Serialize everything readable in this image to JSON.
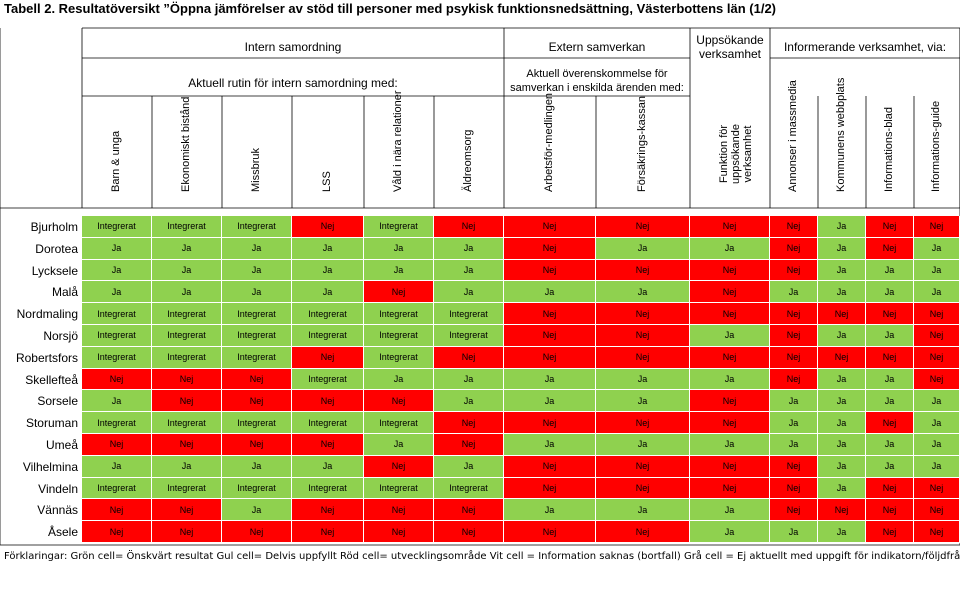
{
  "title": "Tabell 2. Resultatöversikt ”Öppna jämförelser av stöd till personer med psykisk funktionsnedsättning, Västerbottens län (1/2)",
  "groups": {
    "intern": "Intern samordning",
    "intern_sub": "Aktuell rutin för intern samordning med:",
    "extern": "Extern samverkan",
    "extern_sub": "Aktuell överenskommelse för samverkan i enskilda ärenden med:",
    "uppsok": "Uppsökande verksamhet",
    "inform": "Informerande verksamhet, via:"
  },
  "columns": [
    "Barn & unga",
    "Ekonomiskt bistånd",
    "Missbruk",
    "LSS",
    "Våld i nära relationer",
    "Äldreomsorg",
    "Arbetsför-medlingen",
    "Försäkrings-kassan",
    "Funktion för uppsökande verksamhet",
    "Annonser i massmedia",
    "Kommunens webbplats",
    "Informations-blad",
    "Informations-guide"
  ],
  "rows": [
    {
      "name": "Bjurholm",
      "cells": [
        "Integrerat",
        "Integrerat",
        "Integrerat",
        "Nej",
        "Integrerat",
        "Nej",
        "Nej",
        "Nej",
        "Nej",
        "Nej",
        "Ja",
        "Nej",
        "Nej"
      ]
    },
    {
      "name": "Dorotea",
      "cells": [
        "Ja",
        "Ja",
        "Ja",
        "Ja",
        "Ja",
        "Ja",
        "Nej",
        "Ja",
        "Ja",
        "Nej",
        "Ja",
        "Nej",
        "Ja"
      ]
    },
    {
      "name": "Lycksele",
      "cells": [
        "Ja",
        "Ja",
        "Ja",
        "Ja",
        "Ja",
        "Ja",
        "Nej",
        "Nej",
        "Nej",
        "Nej",
        "Ja",
        "Ja",
        "Ja"
      ]
    },
    {
      "name": "Malå",
      "cells": [
        "Ja",
        "Ja",
        "Ja",
        "Ja",
        "Nej",
        "Ja",
        "Ja",
        "Ja",
        "Nej",
        "Ja",
        "Ja",
        "Ja",
        "Ja"
      ]
    },
    {
      "name": "Nordmaling",
      "cells": [
        "Integrerat",
        "Integrerat",
        "Integrerat",
        "Integrerat",
        "Integrerat",
        "Integrerat",
        "Nej",
        "Nej",
        "Nej",
        "Nej",
        "Nej",
        "Nej",
        "Nej"
      ]
    },
    {
      "name": "Norsjö",
      "cells": [
        "Integrerat",
        "Integrerat",
        "Integrerat",
        "Integrerat",
        "Integrerat",
        "Integrerat",
        "Nej",
        "Nej",
        "Ja",
        "Nej",
        "Ja",
        "Ja",
        "Nej"
      ]
    },
    {
      "name": "Robertsfors",
      "cells": [
        "Integrerat",
        "Integrerat",
        "Integrerat",
        "Nej",
        "Integrerat",
        "Nej",
        "Nej",
        "Nej",
        "Nej",
        "Nej",
        "Nej",
        "Nej",
        "Nej"
      ]
    },
    {
      "name": "Skellefteå",
      "cells": [
        "Nej",
        "Nej",
        "Nej",
        "Integrerat",
        "Ja",
        "Ja",
        "Ja",
        "Ja",
        "Ja",
        "Nej",
        "Ja",
        "Ja",
        "Nej"
      ]
    },
    {
      "name": "Sorsele",
      "cells": [
        "Ja",
        "Nej",
        "Nej",
        "Nej",
        "Nej",
        "Ja",
        "Ja",
        "Ja",
        "Nej",
        "Ja",
        "Ja",
        "Ja",
        "Ja"
      ]
    },
    {
      "name": "Storuman",
      "cells": [
        "Integrerat",
        "Integrerat",
        "Integrerat",
        "Integrerat",
        "Integrerat",
        "Nej",
        "Nej",
        "Nej",
        "Nej",
        "Ja",
        "Ja",
        "Nej",
        "Ja"
      ]
    },
    {
      "name": "Umeå",
      "cells": [
        "Nej",
        "Nej",
        "Nej",
        "Nej",
        "Ja",
        "Nej",
        "Ja",
        "Ja",
        "Ja",
        "Ja",
        "Ja",
        "Ja",
        "Ja"
      ]
    },
    {
      "name": "Vilhelmina",
      "cells": [
        "Ja",
        "Ja",
        "Ja",
        "Ja",
        "Nej",
        "Ja",
        "Nej",
        "Nej",
        "Nej",
        "Nej",
        "Ja",
        "Ja",
        "Ja"
      ]
    },
    {
      "name": "Vindeln",
      "cells": [
        "Integrerat",
        "Integrerat",
        "Integrerat",
        "Integrerat",
        "Integrerat",
        "Integrerat",
        "Nej",
        "Nej",
        "Nej",
        "Nej",
        "Ja",
        "Nej",
        "Nej"
      ]
    },
    {
      "name": "Vännäs",
      "cells": [
        "Nej",
        "Nej",
        "Ja",
        "Nej",
        "Nej",
        "Nej",
        "Ja",
        "Ja",
        "Ja",
        "Nej",
        "Nej",
        "Nej",
        "Nej"
      ]
    },
    {
      "name": "Åsele",
      "cells": [
        "Nej",
        "Nej",
        "Nej",
        "Nej",
        "Nej",
        "Nej",
        "Nej",
        "Nej",
        "Ja",
        "Ja",
        "Ja",
        "Nej",
        "Nej"
      ]
    }
  ],
  "colors": {
    "good": "#8fd14f",
    "bad": "#ff0000"
  },
  "footnote": "Förklaringar: Grön cell= Önskvärt resultat Gul cell= Delvis uppfyllt Röd cell= utvecklingsområde Vit cell = Information saknas (bortfall) Grå cell = Ej aktuellt med uppgift för indikatorn/följdfrågan."
}
